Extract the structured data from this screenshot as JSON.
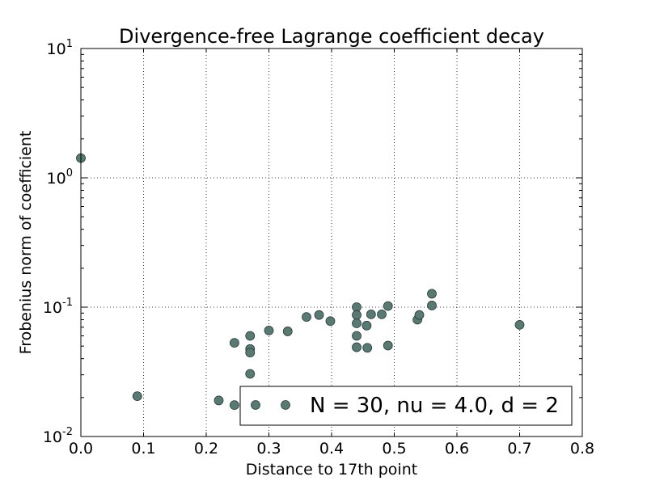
{
  "chart_data": {
    "type": "scatter",
    "title": "Divergence-free Lagrange coefficient decay",
    "xlabel": "Distance to 17th point",
    "ylabel": "Frobenius norm of coefficient",
    "xlim": [
      0.0,
      0.8
    ],
    "ylim": [
      0.01,
      10
    ],
    "yscale": "log",
    "grid": true,
    "legend_position": "lower-right",
    "x_ticks": [
      "0.0",
      "0.1",
      "0.2",
      "0.3",
      "0.4",
      "0.5",
      "0.6",
      "0.7",
      "0.8"
    ],
    "y_ticks": [
      {
        "value": 0.01,
        "base": "10",
        "exp": "-2"
      },
      {
        "value": 0.1,
        "base": "10",
        "exp": "-1"
      },
      {
        "value": 1,
        "base": "10",
        "exp": "0"
      },
      {
        "value": 10,
        "base": "10",
        "exp": "1"
      }
    ],
    "marker_color": "#587a72",
    "series": [
      {
        "name": "N = 30, nu = 4.0, d = 2",
        "points": [
          {
            "x": 0.0,
            "y": 1.42
          },
          {
            "x": 0.09,
            "y": 0.0205
          },
          {
            "x": 0.22,
            "y": 0.019
          },
          {
            "x": 0.245,
            "y": 0.0175
          },
          {
            "x": 0.245,
            "y": 0.053
          },
          {
            "x": 0.27,
            "y": 0.06
          },
          {
            "x": 0.27,
            "y": 0.0475
          },
          {
            "x": 0.27,
            "y": 0.0445
          },
          {
            "x": 0.27,
            "y": 0.0305
          },
          {
            "x": 0.3,
            "y": 0.066
          },
          {
            "x": 0.33,
            "y": 0.065
          },
          {
            "x": 0.36,
            "y": 0.084
          },
          {
            "x": 0.38,
            "y": 0.087
          },
          {
            "x": 0.398,
            "y": 0.078
          },
          {
            "x": 0.44,
            "y": 0.1
          },
          {
            "x": 0.44,
            "y": 0.087
          },
          {
            "x": 0.44,
            "y": 0.075
          },
          {
            "x": 0.44,
            "y": 0.06
          },
          {
            "x": 0.44,
            "y": 0.049
          },
          {
            "x": 0.456,
            "y": 0.072
          },
          {
            "x": 0.457,
            "y": 0.0485
          },
          {
            "x": 0.463,
            "y": 0.088
          },
          {
            "x": 0.48,
            "y": 0.088
          },
          {
            "x": 0.49,
            "y": 0.102
          },
          {
            "x": 0.49,
            "y": 0.0505
          },
          {
            "x": 0.537,
            "y": 0.08
          },
          {
            "x": 0.54,
            "y": 0.087
          },
          {
            "x": 0.56,
            "y": 0.127
          },
          {
            "x": 0.56,
            "y": 0.103
          },
          {
            "x": 0.7,
            "y": 0.073
          }
        ]
      }
    ]
  }
}
